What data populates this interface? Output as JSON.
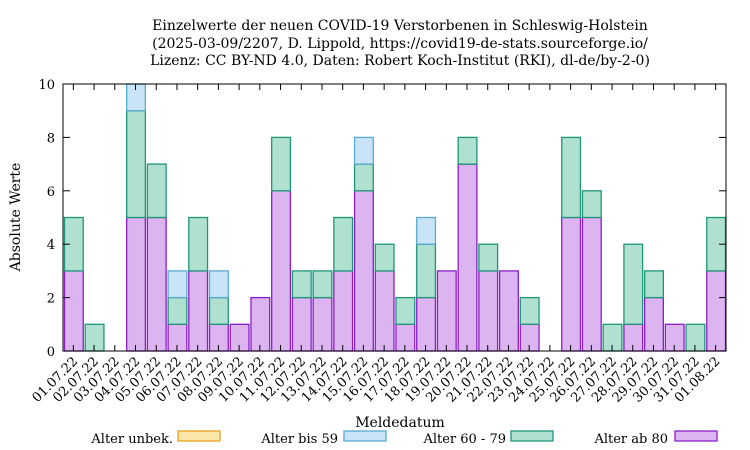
{
  "chart_data": {
    "type": "bar",
    "stacked": true,
    "title": [
      "Einzelwerte der neuen COVID-19 Verstorbenen in Schleswig-Holstein",
      "(2025-03-09/2207, D. Lippold, https://covid19-de-stats.sourceforge.io/",
      "Lizenz: CC BY-ND 4.0, Daten: Robert Koch-Institut (RKI), dl-de/by-2-0)"
    ],
    "xlabel": "Meldedatum",
    "ylabel": "Absolute Werte",
    "ylim": [
      0,
      10
    ],
    "yticks": [
      0,
      2,
      4,
      6,
      8,
      10
    ],
    "grid": false,
    "legend_position": "bottom",
    "categories": [
      "01.07.22",
      "02.07.22",
      "03.07.22",
      "04.07.22",
      "05.07.22",
      "06.07.22",
      "07.07.22",
      "08.07.22",
      "09.07.22",
      "10.07.22",
      "11.07.22",
      "12.07.22",
      "13.07.22",
      "14.07.22",
      "15.07.22",
      "16.07.22",
      "17.07.22",
      "18.07.22",
      "19.07.22",
      "20.07.22",
      "21.07.22",
      "22.07.22",
      "23.07.22",
      "24.07.22",
      "25.07.22",
      "26.07.22",
      "27.07.22",
      "28.07.22",
      "29.07.22",
      "30.07.22",
      "31.07.22",
      "01.08.22"
    ],
    "series": [
      {
        "name": "Alter ab 80",
        "fill": "#dcb5f0",
        "stroke": "#8c1ec8",
        "values": [
          3,
          0,
          0,
          5,
          5,
          1,
          3,
          1,
          1,
          2,
          6,
          2,
          2,
          3,
          6,
          3,
          1,
          2,
          3,
          7,
          3,
          3,
          1,
          0,
          5,
          5,
          0,
          1,
          2,
          1,
          0,
          3
        ]
      },
      {
        "name": "Alter 60 - 79",
        "fill": "#b0e0d0",
        "stroke": "#1e9678",
        "values": [
          2,
          1,
          0,
          4,
          2,
          1,
          2,
          1,
          0,
          0,
          2,
          1,
          1,
          2,
          1,
          1,
          1,
          2,
          0,
          1,
          1,
          0,
          1,
          0,
          3,
          1,
          1,
          3,
          1,
          0,
          1,
          2
        ]
      },
      {
        "name": "Alter bis 59",
        "fill": "#c8e4f6",
        "stroke": "#5aaad2",
        "values": [
          0,
          0,
          0,
          1,
          0,
          1,
          0,
          1,
          0,
          0,
          0,
          0,
          0,
          0,
          1,
          0,
          0,
          1,
          0,
          0,
          0,
          0,
          0,
          0,
          0,
          0,
          0,
          0,
          0,
          0,
          0,
          0
        ]
      },
      {
        "name": "Alter unbek.",
        "fill": "#fae6a8",
        "stroke": "#e6a01e",
        "values": [
          0,
          0,
          0,
          0,
          0,
          0,
          0,
          0,
          0,
          0,
          0,
          0,
          0,
          0,
          0,
          0,
          0,
          0,
          0,
          0,
          0,
          0,
          0,
          0,
          0,
          0,
          0,
          0,
          0,
          0,
          0,
          0
        ]
      }
    ],
    "legend_order": [
      "Alter unbek.",
      "Alter bis 59",
      "Alter 60 - 79",
      "Alter ab 80"
    ]
  }
}
